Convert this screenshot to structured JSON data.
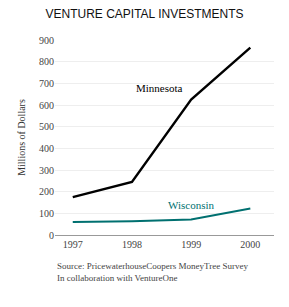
{
  "chart_data": {
    "type": "line",
    "title": "VENTURE CAPITAL INVESTMENTS",
    "ylabel": "Millions of Dollars",
    "annotations": [
      "Source: PricewaterhouseCoopers MoneyTree Survey\nIn collaboration with VentureOne"
    ],
    "x": [
      1997,
      1997.5,
      1998,
      1999,
      2000
    ],
    "series": [
      {
        "name": "Minnesota",
        "color": "#000000",
        "values": [
          175,
          210,
          245,
          625,
          865
        ]
      },
      {
        "name": "Wisconsin",
        "color": "#007070",
        "values": [
          60,
          60,
          63,
          72,
          122
        ]
      }
    ],
    "xlim": [
      1996.7,
      2000.4
    ],
    "xticks": [
      1997,
      1998,
      1999,
      2000
    ],
    "ylim": [
      0,
      900
    ],
    "yticks": [
      0,
      100,
      200,
      300,
      400,
      500,
      600,
      700,
      800,
      900
    ],
    "grid": true
  }
}
